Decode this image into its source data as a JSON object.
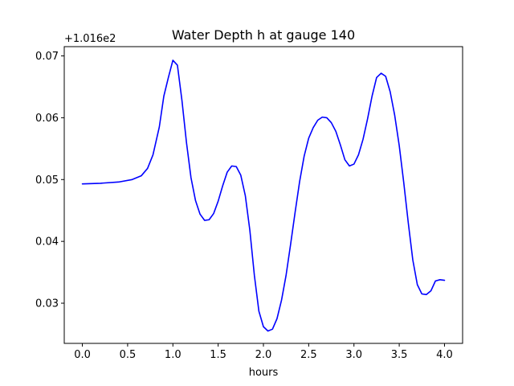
{
  "chart_data": {
    "type": "line",
    "title": "Water Depth h at gauge 140",
    "xlabel": "hours",
    "ylabel": "",
    "y_offset_label": "+1.016e2",
    "xlim": [
      -0.2,
      4.2
    ],
    "ylim": [
      0.0235,
      0.0715
    ],
    "x_ticks": [
      0.0,
      0.5,
      1.0,
      1.5,
      2.0,
      2.5,
      3.0,
      3.5,
      4.0
    ],
    "x_tick_labels": [
      "0.0",
      "0.5",
      "1.0",
      "1.5",
      "2.0",
      "2.5",
      "3.0",
      "3.5",
      "4.0"
    ],
    "y_ticks": [
      0.03,
      0.04,
      0.05,
      0.06,
      0.07
    ],
    "y_tick_labels": [
      "0.03",
      "0.04",
      "0.05",
      "0.06",
      "0.07"
    ],
    "grid": false,
    "series": [
      {
        "color": "#0000ff",
        "x": [
          0.0,
          0.2,
          0.4,
          0.55,
          0.65,
          0.72,
          0.78,
          0.85,
          0.9,
          0.95,
          1.0,
          1.05,
          1.1,
          1.15,
          1.2,
          1.25,
          1.3,
          1.35,
          1.4,
          1.45,
          1.5,
          1.55,
          1.6,
          1.65,
          1.7,
          1.75,
          1.8,
          1.85,
          1.9,
          1.95,
          2.0,
          2.05,
          2.1,
          2.15,
          2.2,
          2.25,
          2.3,
          2.35,
          2.4,
          2.45,
          2.5,
          2.55,
          2.6,
          2.65,
          2.7,
          2.75,
          2.8,
          2.85,
          2.9,
          2.95,
          3.0,
          3.05,
          3.1,
          3.15,
          3.2,
          3.25,
          3.3,
          3.35,
          3.4,
          3.45,
          3.5,
          3.55,
          3.6,
          3.65,
          3.7,
          3.75,
          3.8,
          3.85,
          3.9,
          3.95,
          4.0
        ],
        "y": [
          0.0493,
          0.0494,
          0.0496,
          0.05,
          0.0506,
          0.0518,
          0.054,
          0.0585,
          0.0635,
          0.0665,
          0.0693,
          0.0685,
          0.0628,
          0.056,
          0.0503,
          0.0466,
          0.0444,
          0.0434,
          0.0435,
          0.0445,
          0.0465,
          0.049,
          0.0512,
          0.0522,
          0.0521,
          0.0507,
          0.0474,
          0.0418,
          0.0345,
          0.0287,
          0.0262,
          0.0255,
          0.0258,
          0.0275,
          0.0305,
          0.0345,
          0.0395,
          0.0447,
          0.0497,
          0.0538,
          0.0567,
          0.0584,
          0.0596,
          0.0601,
          0.06,
          0.0592,
          0.0578,
          0.0556,
          0.0532,
          0.0522,
          0.0525,
          0.054,
          0.0565,
          0.0598,
          0.0635,
          0.0665,
          0.0672,
          0.0667,
          0.0642,
          0.0604,
          0.0555,
          0.0495,
          0.043,
          0.037,
          0.033,
          0.0315,
          0.0314,
          0.032,
          0.0336,
          0.0338,
          0.0337
        ]
      }
    ]
  }
}
